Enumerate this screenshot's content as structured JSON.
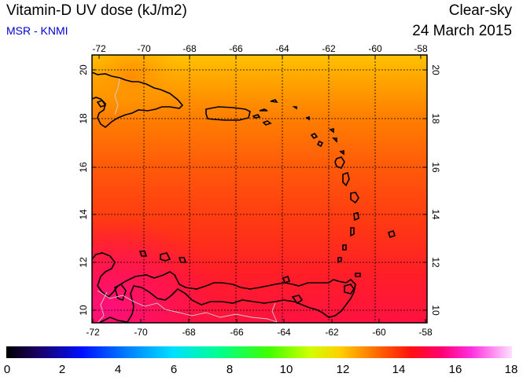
{
  "header": {
    "title": "Vitamin-D UV dose (kJ/m2)",
    "source": "MSR - KNMI",
    "scenario": "Clear-sky",
    "date": "24 March 2015"
  },
  "axes": {
    "lon_ticks": [
      "-72",
      "-70",
      "-68",
      "-66",
      "-64",
      "-62",
      "-60",
      "-58"
    ],
    "lat_ticks": [
      "20",
      "18",
      "16",
      "14",
      "12",
      "10"
    ]
  },
  "colorbar": {
    "ticks": [
      "0",
      "2",
      "4",
      "6",
      "8",
      "10",
      "12",
      "14",
      "16",
      "18"
    ]
  },
  "colors": {
    "title_accent": "#0000d0"
  }
}
